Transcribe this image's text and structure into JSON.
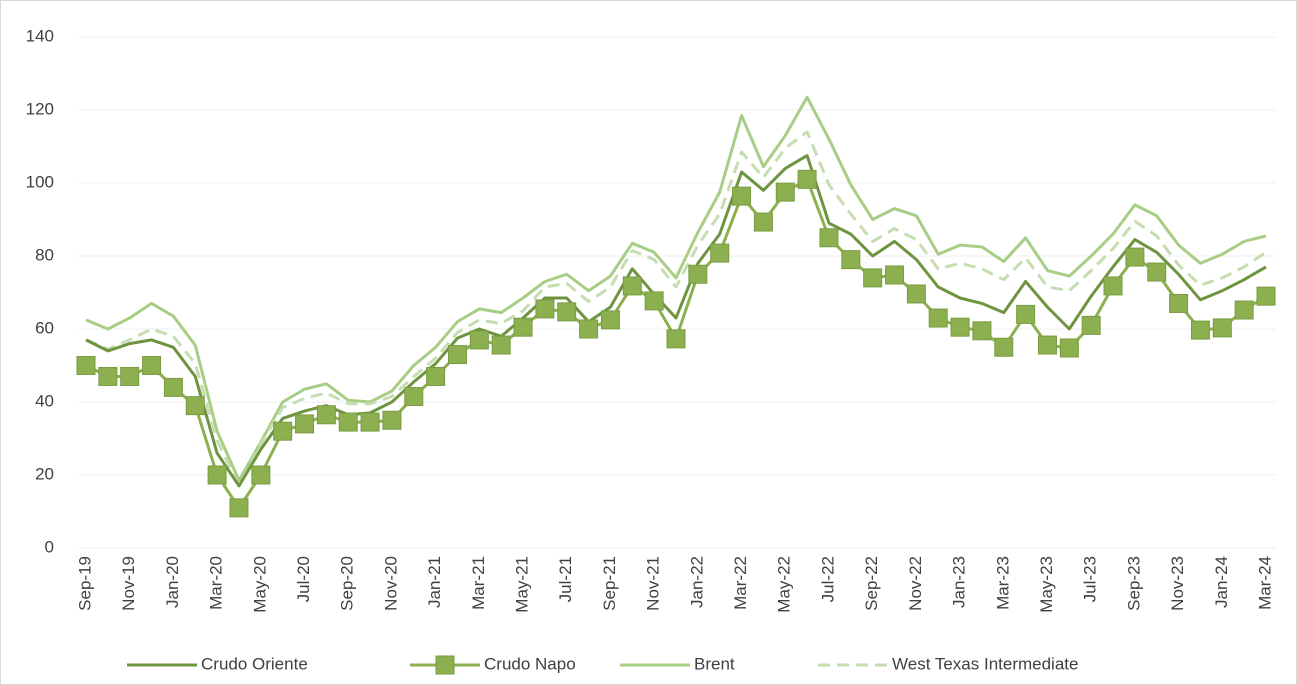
{
  "chart_data": {
    "type": "line",
    "categories": [
      "Sep-19",
      null,
      "Nov-19",
      null,
      "Jan-20",
      null,
      "Mar-20",
      null,
      "May-20",
      null,
      "Jul-20",
      null,
      "Sep-20",
      null,
      "Nov-20",
      null,
      "Jan-21",
      null,
      "Mar-21",
      null,
      "May-21",
      null,
      "Jul-21",
      null,
      "Sep-21",
      null,
      "Nov-21",
      null,
      "Jan-22",
      null,
      "Mar-22",
      null,
      "May-22",
      null,
      "Jul-22",
      null,
      "Sep-22",
      null,
      "Nov-22",
      null,
      "Jan-23",
      null,
      "Mar-23",
      null,
      "May-23",
      null,
      "Jul-23",
      null,
      "Sep-23",
      null,
      "Nov-23",
      null,
      "Jan-24",
      null,
      "Mar-24"
    ],
    "series": [
      {
        "name": "Crudo Oriente",
        "color": "#6f9440",
        "line_style": "solid",
        "values": [
          57,
          54,
          56,
          57,
          55,
          47,
          26,
          17,
          27,
          35.5,
          37.5,
          39,
          36.5,
          37,
          40,
          45.5,
          50.5,
          57.5,
          60,
          58,
          63,
          68.5,
          68.5,
          62,
          66,
          76.5,
          69.5,
          63,
          78,
          86,
          103,
          98,
          104,
          107.5,
          89,
          86,
          80,
          84,
          79,
          71.5,
          68.5,
          67,
          64.5,
          73,
          66,
          60,
          69,
          77,
          84.5,
          81,
          75,
          68,
          70.5,
          73.5,
          77
        ]
      },
      {
        "name": "Crudo Napo",
        "color": "#8cb04f",
        "line_style": "solid",
        "marker": "square",
        "values": [
          50,
          47,
          47,
          50,
          44,
          39,
          20,
          11,
          20,
          32,
          34,
          36.5,
          34.5,
          34.5,
          35,
          41.5,
          47,
          53,
          57,
          55.6,
          60.5,
          65.5,
          64.7,
          60,
          62.5,
          71.8,
          67.7,
          57.3,
          75,
          80.8,
          96.4,
          89.3,
          97.5,
          101,
          85,
          79,
          74,
          74.8,
          69.6,
          63,
          60.5,
          59.5,
          55,
          64,
          55.6,
          54.8,
          61,
          71.8,
          79.7,
          75.6,
          67,
          59.7,
          60.3,
          65.2,
          69
        ]
      },
      {
        "name": "Brent",
        "color": "#a8cd85",
        "line_style": "solid",
        "values": [
          62.5,
          60,
          63,
          67,
          63.5,
          55.5,
          32,
          18.5,
          29,
          40,
          43.5,
          45,
          40.5,
          40,
          43,
          50,
          55,
          62,
          65.5,
          64.5,
          68.5,
          73,
          75,
          70.5,
          74.5,
          83.5,
          81,
          74,
          86.5,
          97.5,
          118.5,
          104.5,
          113,
          123.5,
          112,
          99.5,
          90,
          93,
          91,
          80.5,
          83,
          82.5,
          78.5,
          85,
          76,
          74.5,
          80,
          86,
          94,
          91,
          83,
          78,
          80.5,
          84,
          85.5
        ]
      },
      {
        "name": "West Texas Intermediate",
        "color": "#c6ddb1",
        "line_style": "dashed",
        "values": [
          57,
          54.5,
          57,
          60,
          58,
          50.5,
          29.5,
          17,
          28.5,
          38.5,
          41,
          42.5,
          39.5,
          39.5,
          41.5,
          47,
          52,
          59,
          62.5,
          61.5,
          65,
          71.5,
          72.5,
          67.5,
          71.5,
          81.5,
          79,
          71.5,
          83,
          91.5,
          108.5,
          101.5,
          109.5,
          114,
          99.5,
          91.5,
          84,
          87.5,
          84.5,
          76.5,
          78,
          76.5,
          73.5,
          79.5,
          71.5,
          70.5,
          76,
          82,
          89.5,
          85.5,
          77.5,
          72,
          74,
          77,
          81
        ]
      }
    ],
    "ylim": [
      0,
      140
    ],
    "yticks": [
      0,
      20,
      40,
      60,
      80,
      100,
      120,
      140
    ],
    "grid": true,
    "legend": "bottom"
  }
}
